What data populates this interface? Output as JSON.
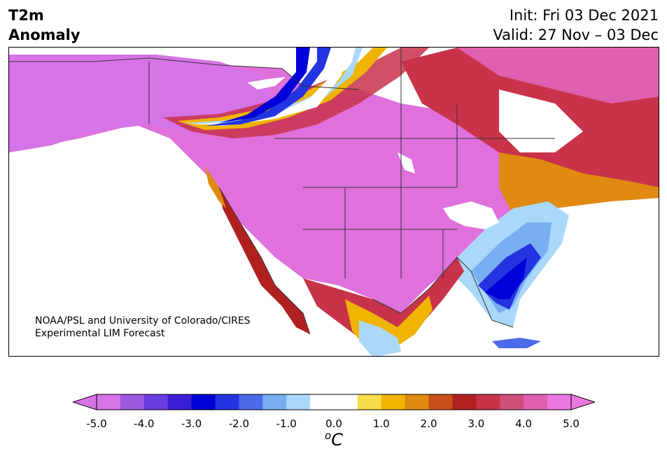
{
  "header": {
    "title_line1": "T2m",
    "title_line2": "Anomaly",
    "init": "Init: Fri 03 Dec 2021",
    "valid": "Valid: 27 Nov – 03 Dec"
  },
  "credit": {
    "line1": "NOAA/PSL and University of Colorado/CIRES",
    "line2": "Experimental LIM Forecast"
  },
  "colorbar": {
    "units_base": "C",
    "units_sup": "o",
    "ticks": [
      "-5.0",
      "-4.0",
      "-3.0",
      "-2.0",
      "-1.0",
      "0.0",
      "1.0",
      "2.0",
      "3.0",
      "4.0",
      "5.0"
    ],
    "colors": [
      "#d673e6",
      "#9b59e0",
      "#6a3de0",
      "#3a1fd6",
      "#0000d9",
      "#2334e0",
      "#4a6ae8",
      "#78aff2",
      "#aad8fa",
      "#ffffff",
      "#ffffff",
      "#f7dd4a",
      "#f0b400",
      "#e08a12",
      "#c8501a",
      "#b02020",
      "#c8334a",
      "#d04f7a",
      "#e060b0",
      "#ec78e0"
    ],
    "levels": [
      -5.0,
      -4.5,
      -4.0,
      -3.5,
      -3.0,
      -2.5,
      -2.0,
      -1.5,
      -1.0,
      -0.5,
      0.0,
      0.5,
      1.0,
      1.5,
      2.0,
      2.5,
      3.0,
      3.5,
      4.0,
      4.5,
      5.0
    ],
    "extend_low_color": "#d673e6",
    "extend_high_color": "#ec78e0"
  },
  "map": {
    "region": "North America",
    "variable": "2-meter temperature anomaly",
    "ocean_color": "#ffffff",
    "coast_color": "#333333"
  }
}
